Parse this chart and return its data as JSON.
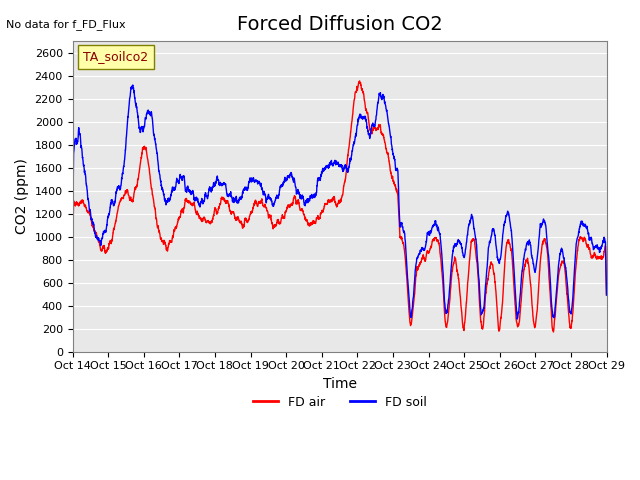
{
  "title": "Forced Diffusion CO2",
  "top_left_text": "No data for f_FD_Flux",
  "box_label": "TA_soilco2",
  "ylabel": "CO2 (ppm)",
  "xlabel": "Time",
  "xlim": [
    0,
    360
  ],
  "ylim": [
    0,
    2700
  ],
  "yticks": [
    0,
    200,
    400,
    600,
    800,
    1000,
    1200,
    1400,
    1600,
    1800,
    2000,
    2200,
    2400,
    2600
  ],
  "xtick_labels": [
    "Oct 14",
    "Oct 15",
    "Oct 16",
    "Oct 17",
    "Oct 18",
    "Oct 19",
    "Oct 20",
    "Oct 21",
    "Oct 22",
    "Oct 23",
    "Oct 24",
    "Oct 25",
    "Oct 26",
    "Oct 27",
    "Oct 28",
    "Oct 29"
  ],
  "xtick_positions": [
    0,
    24,
    48,
    72,
    96,
    120,
    144,
    168,
    192,
    216,
    240,
    264,
    288,
    312,
    336,
    360
  ],
  "red_color": "#ff0000",
  "blue_color": "#0000ff",
  "bg_color": "#e8e8e8",
  "legend_red": "FD air",
  "legend_blue": "FD soil",
  "title_fontsize": 14,
  "axis_label_fontsize": 10,
  "tick_fontsize": 8
}
